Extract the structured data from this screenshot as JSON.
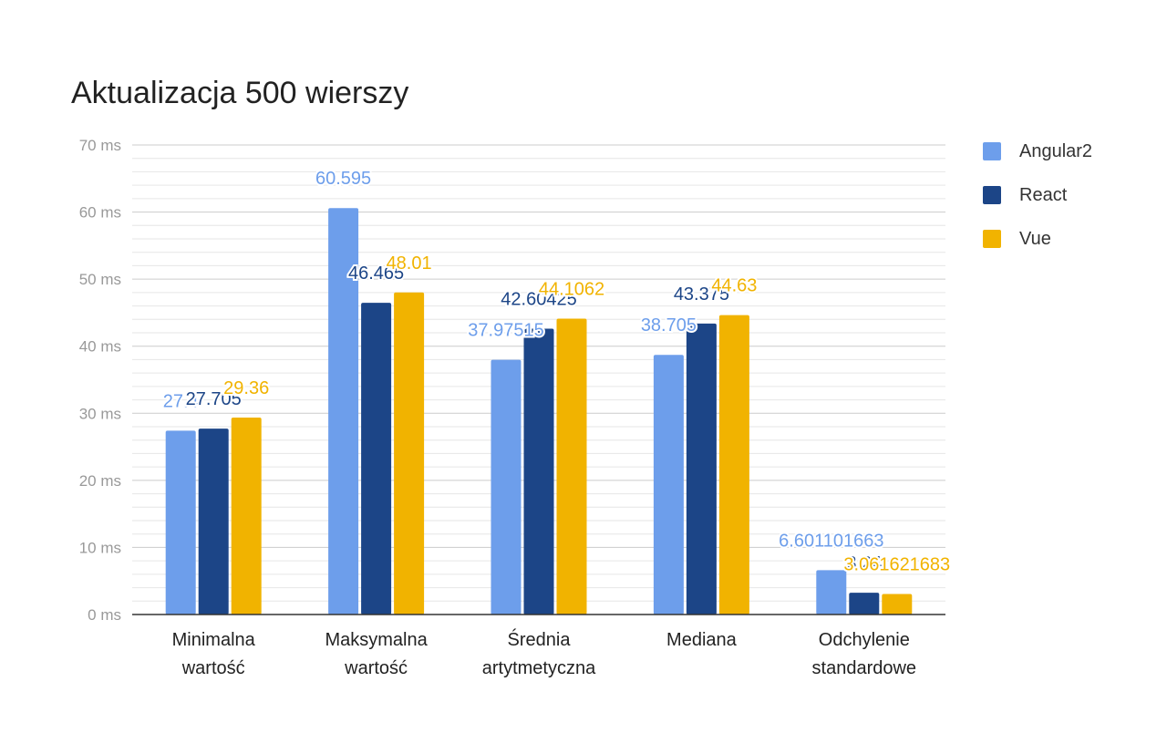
{
  "chart_data": {
    "type": "bar",
    "title": "Aktualizacja 500 wierszy",
    "ylabel": "",
    "xlabel": "",
    "ylim": [
      0,
      70
    ],
    "y_ticks": [
      "0 ms",
      "10 ms",
      "20 ms",
      "30 ms",
      "40 ms",
      "50 ms",
      "60 ms",
      "70 ms"
    ],
    "y_tick_values": [
      0,
      10,
      20,
      30,
      40,
      50,
      60,
      70
    ],
    "minor_grid_step": 2,
    "grid": true,
    "legend_position": "right",
    "categories": [
      [
        "Minimalna",
        "wartość"
      ],
      [
        "Maksymalna",
        "wartość"
      ],
      [
        "Średnia",
        "artytmetyczna"
      ],
      [
        "Mediana"
      ],
      [
        "Odchylenie",
        "standardowe"
      ]
    ],
    "series": [
      {
        "name": "Angular2",
        "color": "#6d9eeb",
        "values": [
          27.4,
          60.595,
          37.97515,
          38.705,
          6.601101663
        ],
        "labels": [
          "27.4",
          "60.595",
          "37.97515",
          "38.705",
          "6.601101663"
        ]
      },
      {
        "name": "React",
        "color": "#1c4587",
        "values": [
          27.705,
          46.465,
          42.60425,
          43.375,
          3.24
        ],
        "labels": [
          "27.705",
          "46.465",
          "42.60425",
          "43.375",
          "3.24"
        ]
      },
      {
        "name": "Vue",
        "color": "#f1b300",
        "values": [
          29.36,
          48.01,
          44.1062,
          44.63,
          3.061621683
        ],
        "labels": [
          "29.36",
          "48.01",
          "44.1062",
          "44.63",
          "3.061621683"
        ]
      }
    ]
  }
}
